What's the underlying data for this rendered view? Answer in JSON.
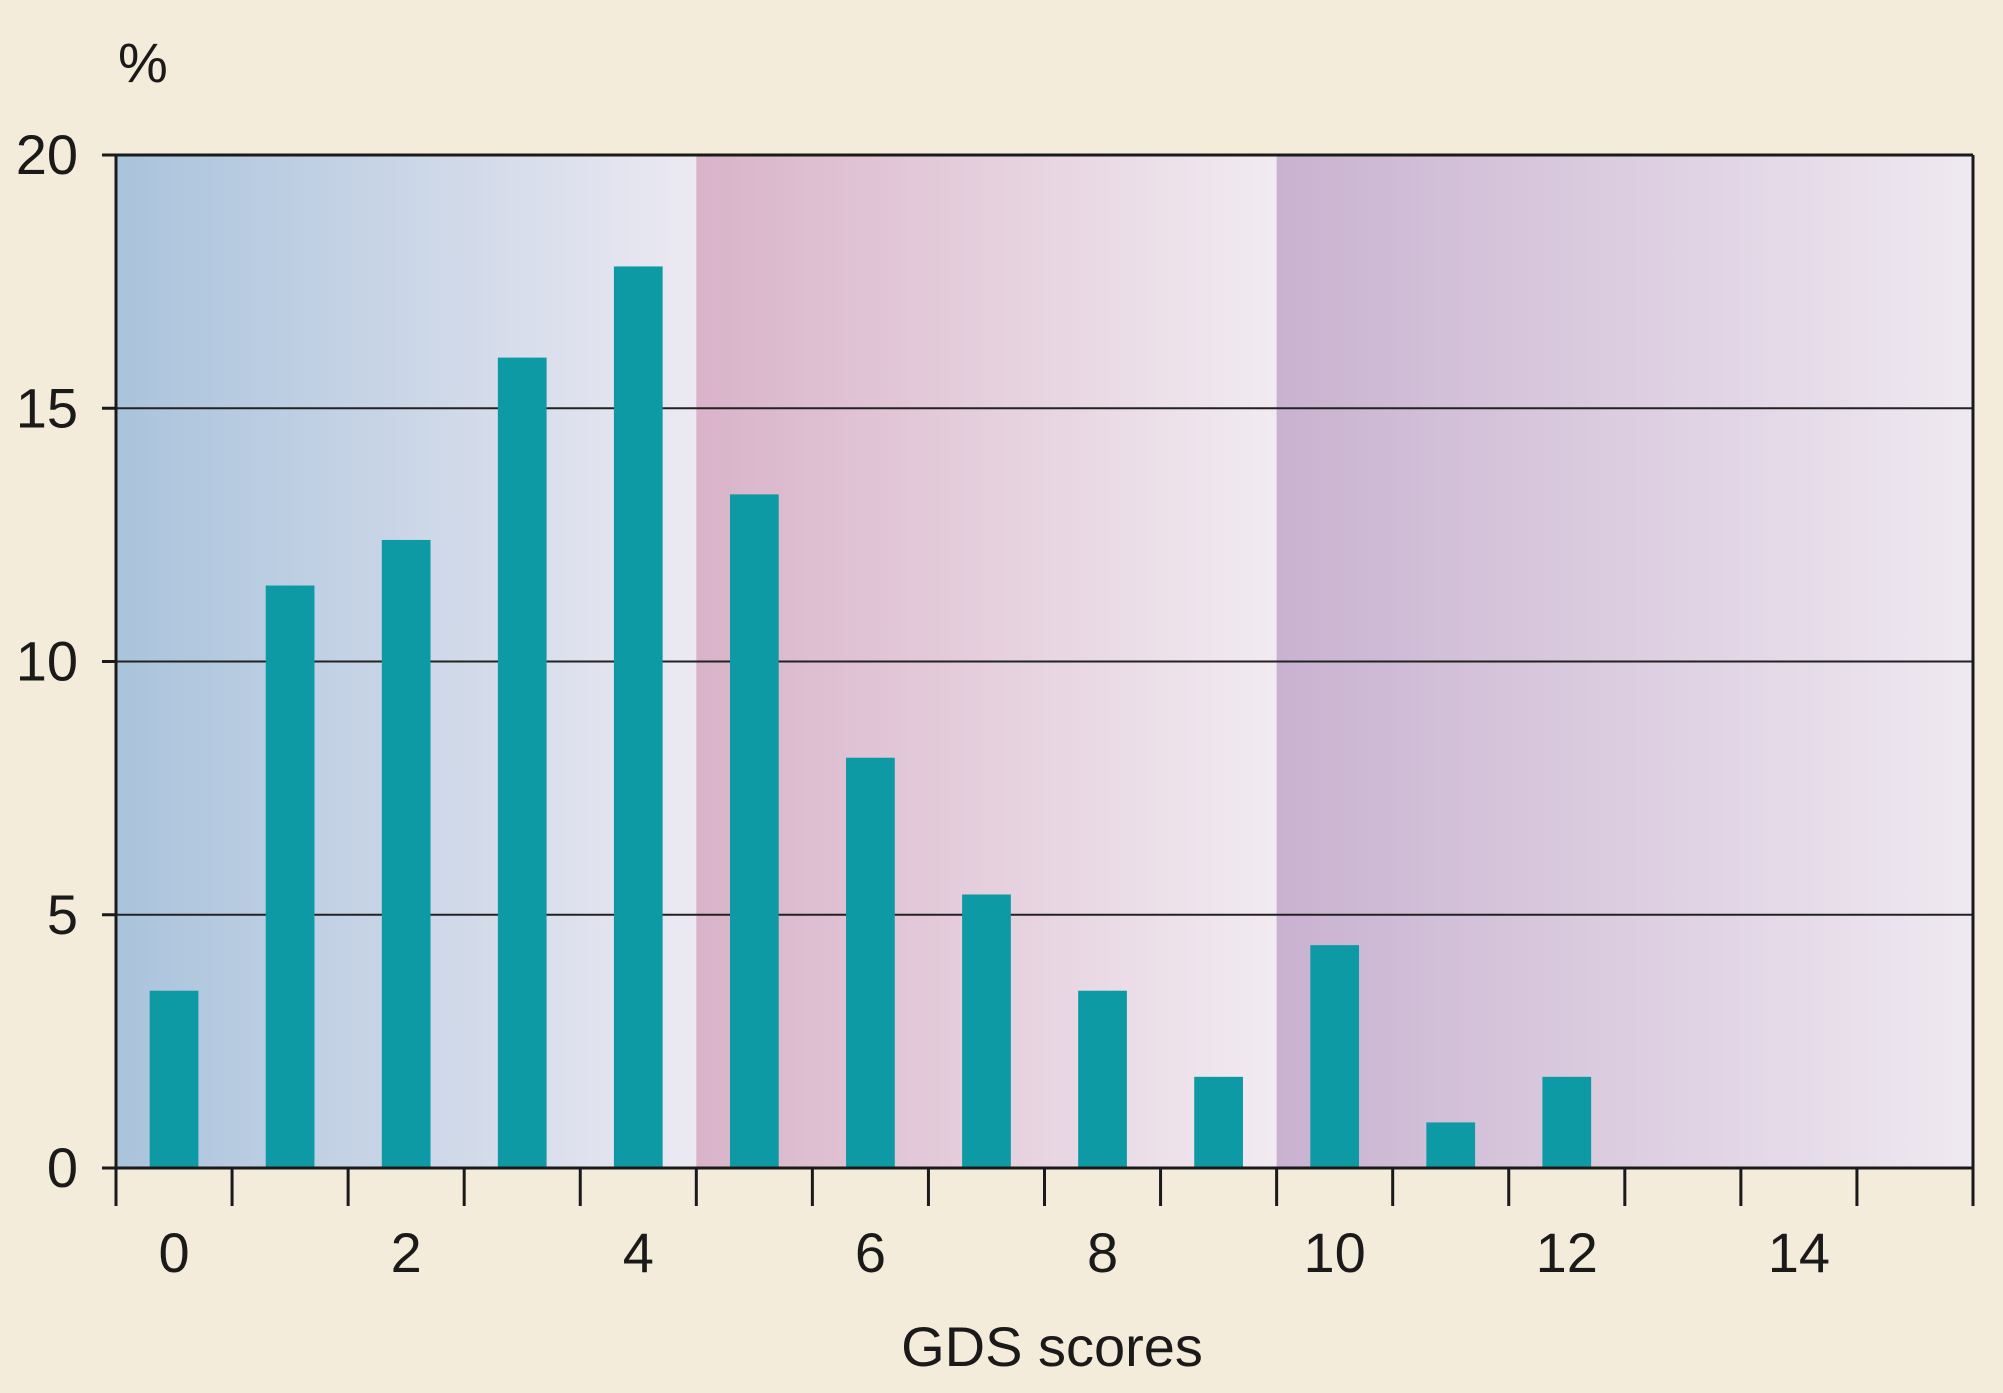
{
  "chart_data": {
    "type": "bar",
    "ylabel": "%",
    "xlabel": "GDS scores",
    "x": [
      0,
      1,
      2,
      3,
      4,
      5,
      6,
      7,
      8,
      9,
      10,
      11,
      12,
      13,
      14,
      15
    ],
    "values": [
      3.5,
      11.5,
      12.4,
      16.0,
      17.8,
      13.3,
      8.1,
      5.4,
      3.5,
      1.8,
      4.4,
      0.9,
      1.8,
      0,
      0,
      0
    ],
    "xticks": [
      0,
      2,
      4,
      6,
      8,
      10,
      12,
      14
    ],
    "yticks": [
      0,
      5,
      10,
      15,
      20
    ],
    "xlim": [
      -0.5,
      15.5
    ],
    "ylim": [
      0,
      20
    ],
    "grid": "horizontal",
    "bar_color": "#0e9aa4",
    "bands": [
      {
        "from": -0.5,
        "to": 4.5,
        "color_start": "#a9c3dc",
        "color_end": "#ece9f2"
      },
      {
        "from": 4.5,
        "to": 9.5,
        "color_start": "#d9b3c9",
        "color_end": "#f1ebf1"
      },
      {
        "from": 9.5,
        "to": 15.5,
        "color_start": "#c9b2d0",
        "color_end": "#efe9f1"
      }
    ]
  }
}
